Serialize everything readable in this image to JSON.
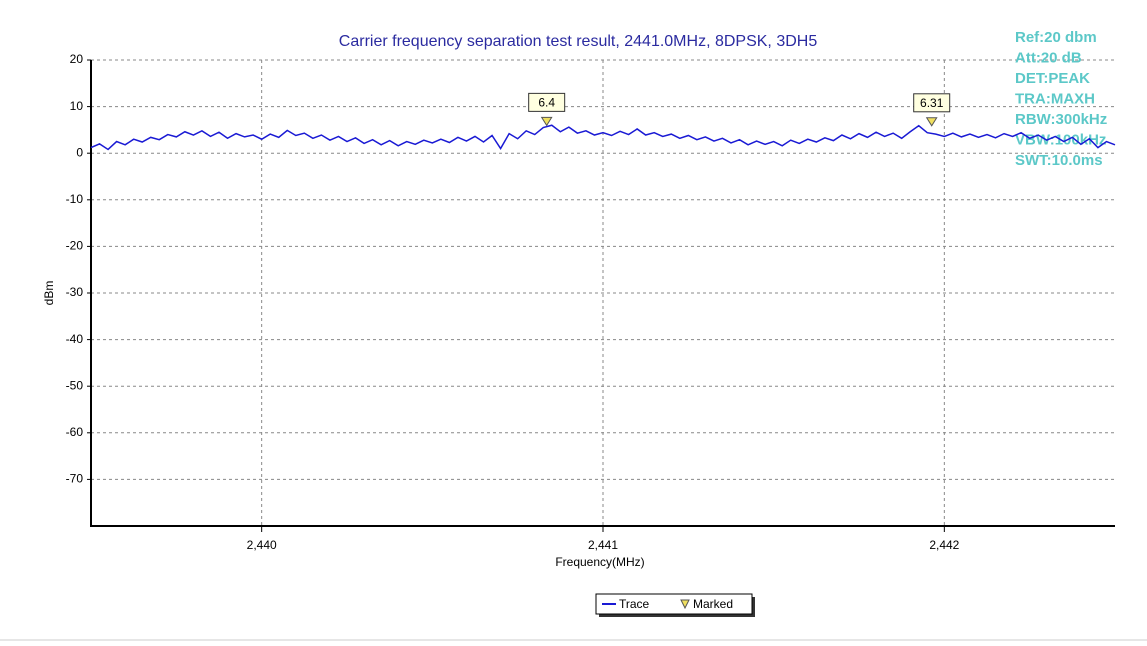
{
  "chart_data": {
    "type": "line",
    "title": "Carrier frequency separation test result, 2441.0MHz, 8DPSK, 3DH5",
    "xlabel": "Frequency(MHz)",
    "ylabel": "dBm",
    "xlim": [
      2439.5,
      2442.5
    ],
    "xticks": [
      {
        "value": 2440,
        "label": "2,440"
      },
      {
        "value": 2441,
        "label": "2,441"
      },
      {
        "value": 2442,
        "label": "2,442"
      }
    ],
    "ylim": [
      -80,
      20
    ],
    "yticks": [
      20,
      10,
      0,
      -10,
      -20,
      -30,
      -40,
      -50,
      -60,
      -70
    ],
    "grid": true,
    "annotations": [
      "Ref:20 dbm",
      "Att:20 dB",
      "DET:PEAK",
      "TRA:MAXH",
      "RBW:300kHz",
      "VBW:100kHz",
      "SWT:10.0ms"
    ],
    "series": [
      {
        "name": "Trace",
        "color": "#1a1ad4",
        "x": [
          2439.5,
          2439.525,
          2439.55,
          2439.575,
          2439.6,
          2439.625,
          2439.65,
          2439.675,
          2439.7,
          2439.725,
          2439.75,
          2439.775,
          2439.8,
          2439.825,
          2439.85,
          2439.875,
          2439.9,
          2439.925,
          2439.95,
          2439.975,
          2440,
          2440.025,
          2440.05,
          2440.075,
          2440.1,
          2440.125,
          2440.15,
          2440.175,
          2440.2,
          2440.225,
          2440.25,
          2440.275,
          2440.3,
          2440.325,
          2440.35,
          2440.375,
          2440.4,
          2440.425,
          2440.45,
          2440.475,
          2440.5,
          2440.525,
          2440.55,
          2440.575,
          2440.6,
          2440.625,
          2440.65,
          2440.675,
          2440.7,
          2440.725,
          2440.75,
          2440.775,
          2440.8,
          2440.825,
          2440.85,
          2440.875,
          2440.9,
          2440.925,
          2440.95,
          2440.975,
          2441,
          2441.025,
          2441.05,
          2441.075,
          2441.1,
          2441.125,
          2441.15,
          2441.175,
          2441.2,
          2441.225,
          2441.25,
          2441.275,
          2441.3,
          2441.325,
          2441.35,
          2441.375,
          2441.4,
          2441.425,
          2441.45,
          2441.475,
          2441.5,
          2441.525,
          2441.55,
          2441.575,
          2441.6,
          2441.625,
          2441.65,
          2441.675,
          2441.7,
          2441.725,
          2441.75,
          2441.775,
          2441.8,
          2441.825,
          2441.85,
          2441.875,
          2441.9,
          2441.925,
          2441.95,
          2441.975,
          2442,
          2442.025,
          2442.05,
          2442.075,
          2442.1,
          2442.125,
          2442.15,
          2442.175,
          2442.2,
          2442.225,
          2442.25,
          2442.275,
          2442.3,
          2442.325,
          2442.35,
          2442.375,
          2442.4,
          2442.425,
          2442.45,
          2442.475,
          2442.5
        ],
        "values": [
          1.2,
          2.0,
          0.8,
          2.5,
          1.8,
          3.0,
          2.4,
          3.4,
          2.9,
          4.0,
          3.5,
          4.6,
          3.9,
          4.8,
          3.6,
          4.5,
          3.2,
          4.2,
          3.5,
          3.9,
          3.0,
          4.1,
          3.4,
          4.9,
          3.8,
          4.3,
          3.2,
          3.9,
          2.8,
          3.6,
          2.5,
          3.3,
          2.1,
          2.9,
          1.8,
          2.7,
          1.6,
          2.5,
          1.9,
          2.8,
          2.2,
          3.0,
          2.3,
          3.4,
          2.6,
          3.6,
          2.4,
          3.8,
          1.0,
          4.2,
          3.1,
          4.8,
          4.0,
          5.5,
          6.0,
          4.6,
          5.6,
          4.3,
          4.8,
          3.9,
          4.4,
          3.8,
          4.7,
          4.0,
          5.2,
          3.9,
          4.4,
          3.6,
          4.1,
          3.2,
          3.8,
          2.9,
          3.5,
          2.6,
          3.2,
          2.2,
          2.9,
          1.8,
          2.6,
          1.9,
          2.5,
          1.6,
          2.8,
          2.1,
          3.0,
          2.4,
          3.3,
          2.7,
          3.9,
          3.1,
          4.2,
          3.4,
          4.5,
          3.6,
          4.3,
          3.2,
          4.6,
          5.9,
          4.4,
          4.1,
          3.6,
          4.3,
          3.5,
          4.1,
          3.4,
          4.0,
          3.3,
          4.2,
          3.6,
          4.4,
          3.2,
          3.9,
          2.8,
          3.6,
          2.5,
          3.4,
          1.9,
          3.1,
          1.2,
          2.5,
          1.8
        ]
      },
      {
        "name": "Marked",
        "color": "#f0e060",
        "x": [
          2440.835,
          2441.963
        ],
        "values": [
          6.4,
          6.31
        ]
      }
    ]
  }
}
